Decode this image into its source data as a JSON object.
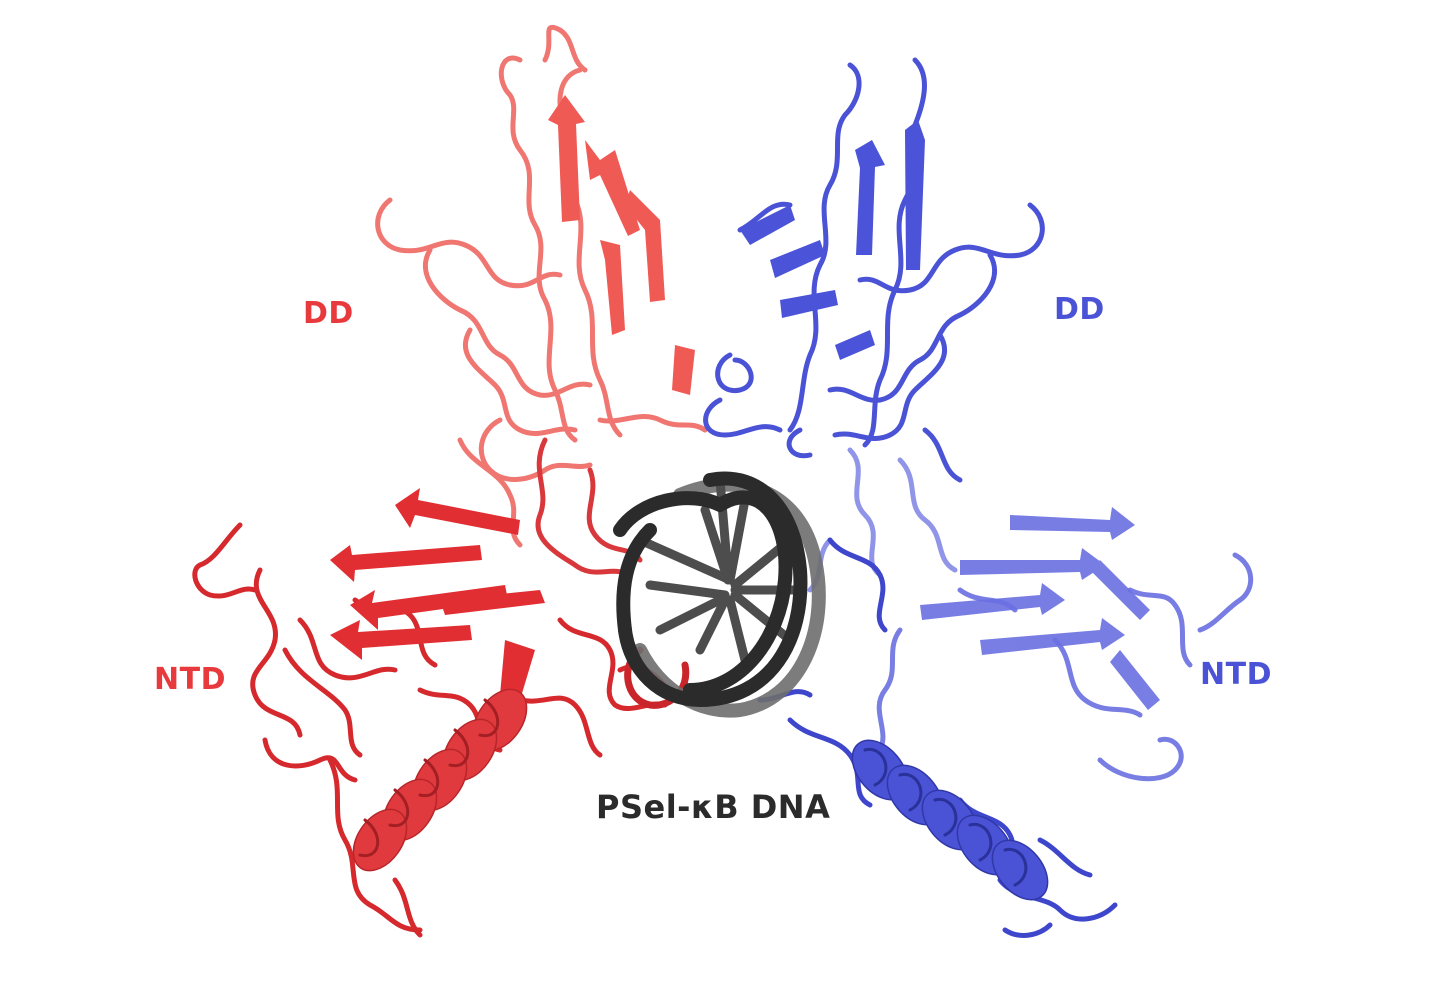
{
  "labels": {
    "dd_left": "DD",
    "dd_right": "DD",
    "ntd_left": "NTD",
    "ntd_right": "NTD",
    "dna": "PSel-κB DNA"
  },
  "colors": {
    "left_subunit": "#e8393c",
    "left_subunit_dark": "#b5262a",
    "left_subunit_light": "#f07a73",
    "right_subunit": "#4a52d6",
    "right_subunit_dark": "#3038a8",
    "right_subunit_light": "#8a8fe6",
    "dna": "#2b2b2b",
    "dna_light": "#6e6e6e"
  }
}
